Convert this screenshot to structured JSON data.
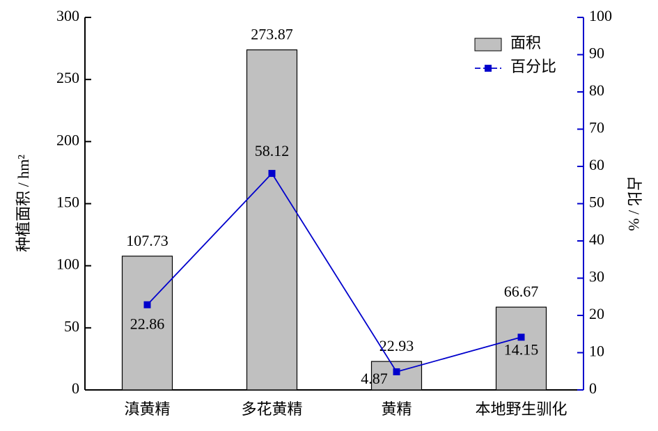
{
  "chart_data": {
    "type": "bar-line",
    "y_label": "种植面积 / hm²",
    "y2_label": "占比 / %",
    "categories": [
      "滇黄精",
      "多花黄精",
      "黄精",
      "本地野生驯化"
    ],
    "series": [
      {
        "name": "面积",
        "type": "bar",
        "color": "#c0c0c0",
        "values": [
          107.73,
          273.87,
          22.93,
          66.67
        ]
      },
      {
        "name": "百分比",
        "type": "line",
        "axis": "y2",
        "color": "#0000cc",
        "values": [
          22.86,
          58.12,
          4.87,
          14.15
        ]
      }
    ],
    "ylim": [
      0,
      300
    ],
    "yticks": [
      0,
      50,
      100,
      150,
      200,
      250,
      300
    ],
    "y2lim": [
      0,
      100
    ],
    "y2ticks": [
      0,
      10,
      20,
      30,
      40,
      50,
      60,
      70,
      80,
      90,
      100
    ],
    "legend": "top-right"
  }
}
